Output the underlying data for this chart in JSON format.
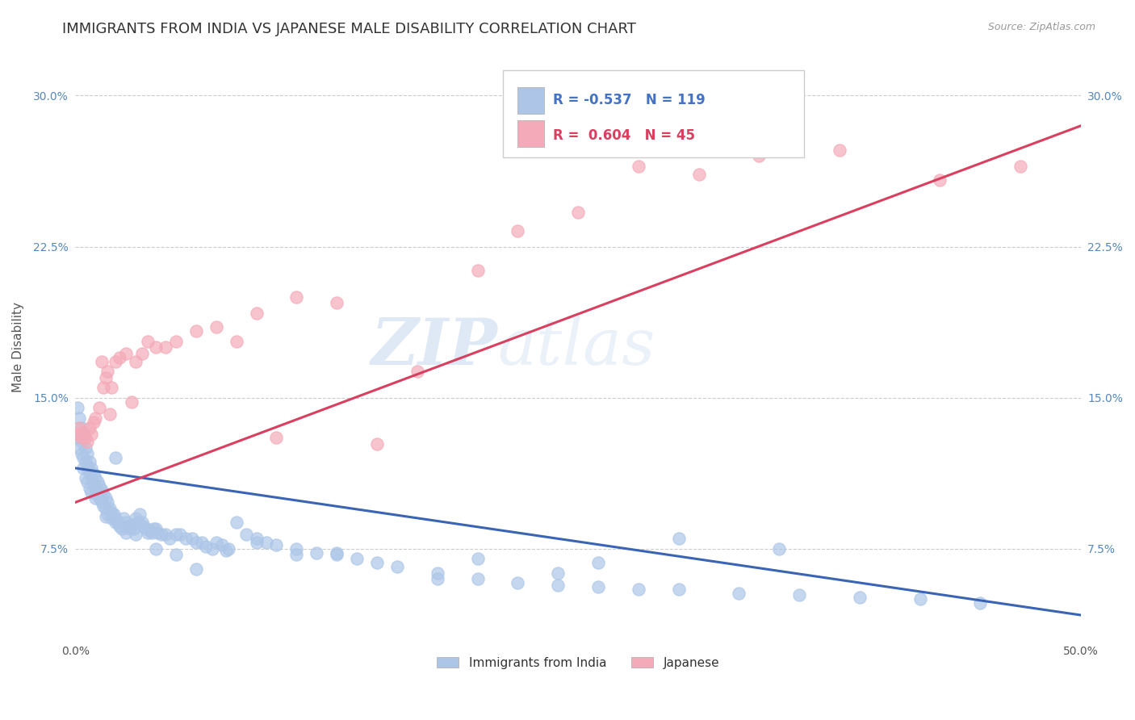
{
  "title": "IMMIGRANTS FROM INDIA VS JAPANESE MALE DISABILITY CORRELATION CHART",
  "source": "Source: ZipAtlas.com",
  "ylabel": "Male Disability",
  "xlim": [
    0.0,
    0.5
  ],
  "ylim": [
    0.03,
    0.32
  ],
  "yticks": [
    0.075,
    0.15,
    0.225,
    0.3
  ],
  "ytick_labels": [
    "7.5%",
    "15.0%",
    "22.5%",
    "30.0%"
  ],
  "xticks": [
    0.0,
    0.1,
    0.2,
    0.3,
    0.4,
    0.5
  ],
  "xtick_labels": [
    "0.0%",
    "",
    "",
    "",
    "",
    "50.0%"
  ],
  "india_color": "#adc6e8",
  "india_color_line": "#3a65b5",
  "japan_color": "#f4aab8",
  "japan_color_line": "#d94060",
  "india_R": "-0.537",
  "india_N": "119",
  "japan_R": "0.604",
  "japan_N": "45",
  "india_scatter_x": [
    0.001,
    0.001,
    0.002,
    0.002,
    0.003,
    0.003,
    0.003,
    0.004,
    0.004,
    0.004,
    0.005,
    0.005,
    0.005,
    0.006,
    0.006,
    0.006,
    0.007,
    0.007,
    0.007,
    0.008,
    0.008,
    0.008,
    0.009,
    0.009,
    0.01,
    0.01,
    0.01,
    0.011,
    0.011,
    0.012,
    0.012,
    0.013,
    0.013,
    0.014,
    0.014,
    0.015,
    0.015,
    0.016,
    0.016,
    0.017,
    0.018,
    0.018,
    0.019,
    0.02,
    0.02,
    0.021,
    0.022,
    0.023,
    0.024,
    0.025,
    0.026,
    0.027,
    0.028,
    0.029,
    0.03,
    0.031,
    0.032,
    0.033,
    0.034,
    0.035,
    0.036,
    0.037,
    0.038,
    0.039,
    0.04,
    0.041,
    0.043,
    0.045,
    0.047,
    0.05,
    0.052,
    0.055,
    0.058,
    0.06,
    0.063,
    0.065,
    0.068,
    0.07,
    0.073,
    0.076,
    0.08,
    0.085,
    0.09,
    0.095,
    0.1,
    0.11,
    0.12,
    0.13,
    0.14,
    0.15,
    0.16,
    0.18,
    0.2,
    0.22,
    0.24,
    0.26,
    0.28,
    0.3,
    0.33,
    0.36,
    0.39,
    0.42,
    0.45,
    0.3,
    0.35,
    0.26,
    0.24,
    0.2,
    0.18,
    0.13,
    0.11,
    0.09,
    0.075,
    0.06,
    0.05,
    0.04,
    0.03,
    0.025,
    0.02,
    0.015
  ],
  "india_scatter_y": [
    0.145,
    0.13,
    0.14,
    0.125,
    0.135,
    0.128,
    0.122,
    0.13,
    0.12,
    0.115,
    0.125,
    0.118,
    0.11,
    0.122,
    0.115,
    0.108,
    0.118,
    0.112,
    0.105,
    0.115,
    0.11,
    0.103,
    0.112,
    0.107,
    0.11,
    0.105,
    0.1,
    0.108,
    0.102,
    0.106,
    0.1,
    0.104,
    0.098,
    0.102,
    0.096,
    0.1,
    0.095,
    0.098,
    0.092,
    0.095,
    0.093,
    0.09,
    0.092,
    0.12,
    0.09,
    0.088,
    0.086,
    0.085,
    0.09,
    0.088,
    0.086,
    0.085,
    0.087,
    0.085,
    0.09,
    0.088,
    0.092,
    0.088,
    0.086,
    0.085,
    0.083,
    0.084,
    0.083,
    0.085,
    0.085,
    0.083,
    0.082,
    0.082,
    0.08,
    0.082,
    0.082,
    0.08,
    0.08,
    0.078,
    0.078,
    0.076,
    0.075,
    0.078,
    0.077,
    0.075,
    0.088,
    0.082,
    0.08,
    0.078,
    0.077,
    0.075,
    0.073,
    0.072,
    0.07,
    0.068,
    0.066,
    0.063,
    0.06,
    0.058,
    0.057,
    0.056,
    0.055,
    0.055,
    0.053,
    0.052,
    0.051,
    0.05,
    0.048,
    0.08,
    0.075,
    0.068,
    0.063,
    0.07,
    0.06,
    0.073,
    0.072,
    0.078,
    0.074,
    0.065,
    0.072,
    0.075,
    0.082,
    0.083,
    0.088,
    0.091
  ],
  "japan_scatter_x": [
    0.001,
    0.002,
    0.003,
    0.004,
    0.005,
    0.006,
    0.007,
    0.008,
    0.009,
    0.01,
    0.012,
    0.013,
    0.014,
    0.015,
    0.016,
    0.017,
    0.018,
    0.02,
    0.022,
    0.025,
    0.028,
    0.03,
    0.033,
    0.036,
    0.04,
    0.045,
    0.05,
    0.06,
    0.07,
    0.08,
    0.09,
    0.1,
    0.11,
    0.13,
    0.15,
    0.17,
    0.2,
    0.22,
    0.25,
    0.28,
    0.31,
    0.34,
    0.38,
    0.43,
    0.47
  ],
  "japan_scatter_y": [
    0.132,
    0.135,
    0.13,
    0.133,
    0.13,
    0.128,
    0.135,
    0.132,
    0.138,
    0.14,
    0.145,
    0.168,
    0.155,
    0.16,
    0.163,
    0.142,
    0.155,
    0.168,
    0.17,
    0.172,
    0.148,
    0.168,
    0.172,
    0.178,
    0.175,
    0.175,
    0.178,
    0.183,
    0.185,
    0.178,
    0.192,
    0.13,
    0.2,
    0.197,
    0.127,
    0.163,
    0.213,
    0.233,
    0.242,
    0.265,
    0.261,
    0.27,
    0.273,
    0.258,
    0.265
  ],
  "india_line_x": [
    0.0,
    0.5
  ],
  "india_line_y": [
    0.115,
    0.042
  ],
  "japan_line_x": [
    0.0,
    0.5
  ],
  "japan_line_y": [
    0.098,
    0.285
  ],
  "watermark_zip": "ZIP",
  "watermark_atlas": "atlas",
  "background_color": "#ffffff",
  "grid_color": "#cccccc",
  "title_fontsize": 13,
  "axis_label_fontsize": 11,
  "tick_fontsize": 10,
  "legend_fontsize": 11
}
